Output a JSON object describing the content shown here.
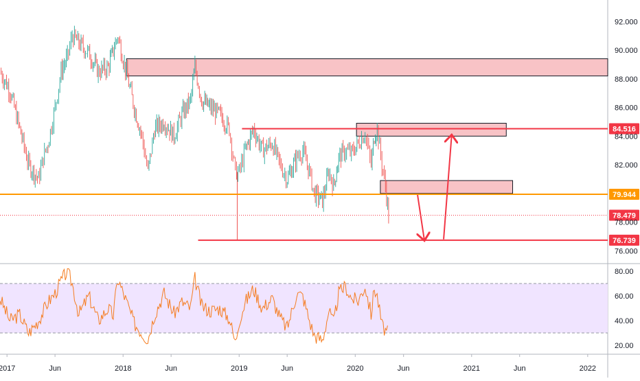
{
  "chart_data": [
    {
      "type": "candlestick",
      "panel": "price",
      "y_tick_labels": [
        "92.000",
        "90.000",
        "88.000",
        "86.000",
        "84.000",
        "82.000",
        "78.000",
        "76.000"
      ],
      "y_ticks": [
        92,
        90,
        88,
        86,
        84,
        82,
        78,
        76
      ],
      "ylim": [
        75.2,
        93.5
      ],
      "x_tick_labels": [
        "2017",
        "Jun",
        "2018",
        "Jun",
        "2019",
        "Jun",
        "2020",
        "Jun",
        "2021",
        "Jun",
        "2022"
      ],
      "x_ticks": [
        "2017-01-01",
        "2017-06-01",
        "2018-01-01",
        "2018-06-01",
        "2019-01-01",
        "2019-06-01",
        "2020-01-01",
        "2020-06-01",
        "2021-01-01",
        "2021-06-01",
        "2022-01-01"
      ],
      "xlim": [
        "2016-12-10",
        "2022-03-05"
      ],
      "series": [
        {
          "values_type": "close",
          "points": [
            [
              "2016-12-10",
              88.5
            ],
            [
              "2017-01-10",
              87.2
            ],
            [
              "2017-02-10",
              84.5
            ],
            [
              "2017-03-10",
              82.0
            ],
            [
              "2017-04-10",
              81.0
            ],
            [
              "2017-04-25",
              82.5
            ],
            [
              "2017-05-10",
              83.5
            ],
            [
              "2017-06-01",
              86.0
            ],
            [
              "2017-06-20",
              88.5
            ],
            [
              "2017-07-10",
              89.5
            ],
            [
              "2017-07-25",
              91.0
            ],
            [
              "2017-08-15",
              90.5
            ],
            [
              "2017-09-15",
              89.8
            ],
            [
              "2017-10-15",
              88.5
            ],
            [
              "2017-11-15",
              88.8
            ],
            [
              "2017-12-01",
              90.0
            ],
            [
              "2017-12-15",
              91.0
            ],
            [
              "2018-01-05",
              89.0
            ],
            [
              "2018-02-05",
              86.0
            ],
            [
              "2018-03-01",
              84.0
            ],
            [
              "2018-03-20",
              81.5
            ],
            [
              "2018-04-10",
              84.5
            ],
            [
              "2018-05-10",
              85.0
            ],
            [
              "2018-06-10",
              84.0
            ],
            [
              "2018-07-05",
              85.5
            ],
            [
              "2018-08-01",
              86.5
            ],
            [
              "2018-08-15",
              88.8
            ],
            [
              "2018-09-05",
              86.5
            ],
            [
              "2018-10-01",
              86.0
            ],
            [
              "2018-11-01",
              85.5
            ],
            [
              "2018-12-01",
              84.5
            ],
            [
              "2018-12-20",
              81.5
            ],
            [
              "2019-01-01",
              81.5
            ],
            [
              "2019-01-20",
              83.0
            ],
            [
              "2019-02-15",
              84.5
            ],
            [
              "2019-03-15",
              83.0
            ],
            [
              "2019-04-15",
              83.5
            ],
            [
              "2019-05-10",
              82.0
            ],
            [
              "2019-06-01",
              81.0
            ],
            [
              "2019-07-01",
              82.5
            ],
            [
              "2019-07-20",
              83.0
            ],
            [
              "2019-08-10",
              81.5
            ],
            [
              "2019-08-25",
              80.0
            ],
            [
              "2019-09-20",
              79.5
            ],
            [
              "2019-10-10",
              81.5
            ],
            [
              "2019-10-25",
              80.5
            ],
            [
              "2019-11-10",
              82.5
            ],
            [
              "2019-12-01",
              83.0
            ],
            [
              "2019-12-20",
              82.8
            ],
            [
              "2020-01-10",
              83.5
            ],
            [
              "2020-02-01",
              84.2
            ],
            [
              "2020-02-20",
              82.0
            ],
            [
              "2020-03-01",
              84.0
            ],
            [
              "2020-03-10",
              84.5
            ],
            [
              "2020-03-25",
              82.0
            ],
            [
              "2020-04-05",
              80.5
            ],
            [
              "2020-04-15",
              78.5
            ]
          ]
        }
      ],
      "horizontal_lines": [
        {
          "value": 84.516,
          "label": "84.516",
          "color": "#f23645"
        },
        {
          "value": 79.944,
          "label": "79.944",
          "color": "#ff9800"
        },
        {
          "value": 76.739,
          "label": "76.739",
          "color": "#f23645"
        },
        {
          "value": 78.479,
          "label": "78.479",
          "color": "#f23645",
          "style": "dotted"
        }
      ],
      "zones": [
        {
          "from_date": "2018-01-12",
          "to_date": "2022-03-05",
          "low": 88.2,
          "high": 89.4
        },
        {
          "from_date": "2020-01-05",
          "to_date": "2021-04-20",
          "low": 84.0,
          "high": 84.9
        },
        {
          "from_date": "2020-03-20",
          "to_date": "2021-05-10",
          "low": 80.0,
          "high": 80.9
        }
      ],
      "arrows": [
        {
          "from_date": "2020-07-15",
          "from_value": 79.9,
          "to_date": "2020-08-05",
          "to_value": 76.8
        },
        {
          "from_date": "2020-10-05",
          "from_value": 76.8,
          "to_date": "2020-10-30",
          "to_value": 84.0
        }
      ],
      "colors": {
        "up": "#26a69a",
        "down": "#ef5350",
        "zone_fill": "#f7b8bc",
        "zone_border": "#131722"
      }
    },
    {
      "type": "line",
      "panel": "rsi",
      "y_tick_labels": [
        "80.00",
        "60.00",
        "40.00",
        "20.00"
      ],
      "y_ticks": [
        80,
        60,
        40,
        20
      ],
      "ylim": [
        15,
        85
      ],
      "band": [
        30,
        70
      ],
      "band_color": "#f0e4ff",
      "line_color": "#f57c1f",
      "series": [
        {
          "points": [
            [
              "2016-12-10",
              58
            ],
            [
              "2017-01-10",
              40
            ],
            [
              "2017-02-10",
              45
            ],
            [
              "2017-03-10",
              30
            ],
            [
              "2017-04-10",
              40
            ],
            [
              "2017-05-10",
              55
            ],
            [
              "2017-06-01",
              62
            ],
            [
              "2017-06-20",
              72
            ],
            [
              "2017-07-10",
              80
            ],
            [
              "2017-07-25",
              70
            ],
            [
              "2017-08-15",
              45
            ],
            [
              "2017-09-15",
              60
            ],
            [
              "2017-10-15",
              40
            ],
            [
              "2017-11-15",
              50
            ],
            [
              "2017-12-01",
              44
            ],
            [
              "2017-12-15",
              74
            ],
            [
              "2018-01-05",
              60
            ],
            [
              "2018-02-05",
              38
            ],
            [
              "2018-03-01",
              30
            ],
            [
              "2018-03-20",
              25
            ],
            [
              "2018-04-10",
              45
            ],
            [
              "2018-05-10",
              62
            ],
            [
              "2018-06-10",
              46
            ],
            [
              "2018-07-05",
              55
            ],
            [
              "2018-08-01",
              50
            ],
            [
              "2018-08-15",
              74
            ],
            [
              "2018-09-05",
              52
            ],
            [
              "2018-10-01",
              48
            ],
            [
              "2018-11-01",
              50
            ],
            [
              "2018-12-01",
              42
            ],
            [
              "2018-12-20",
              22
            ],
            [
              "2019-01-01",
              40
            ],
            [
              "2019-01-20",
              55
            ],
            [
              "2019-02-15",
              66
            ],
            [
              "2019-03-15",
              50
            ],
            [
              "2019-04-15",
              58
            ],
            [
              "2019-05-10",
              42
            ],
            [
              "2019-06-01",
              34
            ],
            [
              "2019-07-01",
              62
            ],
            [
              "2019-07-20",
              60
            ],
            [
              "2019-08-10",
              40
            ],
            [
              "2019-08-25",
              28
            ],
            [
              "2019-09-20",
              24
            ],
            [
              "2019-10-10",
              48
            ],
            [
              "2019-10-25",
              38
            ],
            [
              "2019-11-10",
              62
            ],
            [
              "2019-12-01",
              68
            ],
            [
              "2019-12-20",
              58
            ],
            [
              "2020-01-10",
              56
            ],
            [
              "2020-02-01",
              68
            ],
            [
              "2020-02-20",
              45
            ],
            [
              "2020-03-01",
              66
            ],
            [
              "2020-03-10",
              60
            ],
            [
              "2020-03-25",
              36
            ],
            [
              "2020-04-05",
              32
            ],
            [
              "2020-04-15",
              29
            ]
          ]
        }
      ]
    }
  ]
}
